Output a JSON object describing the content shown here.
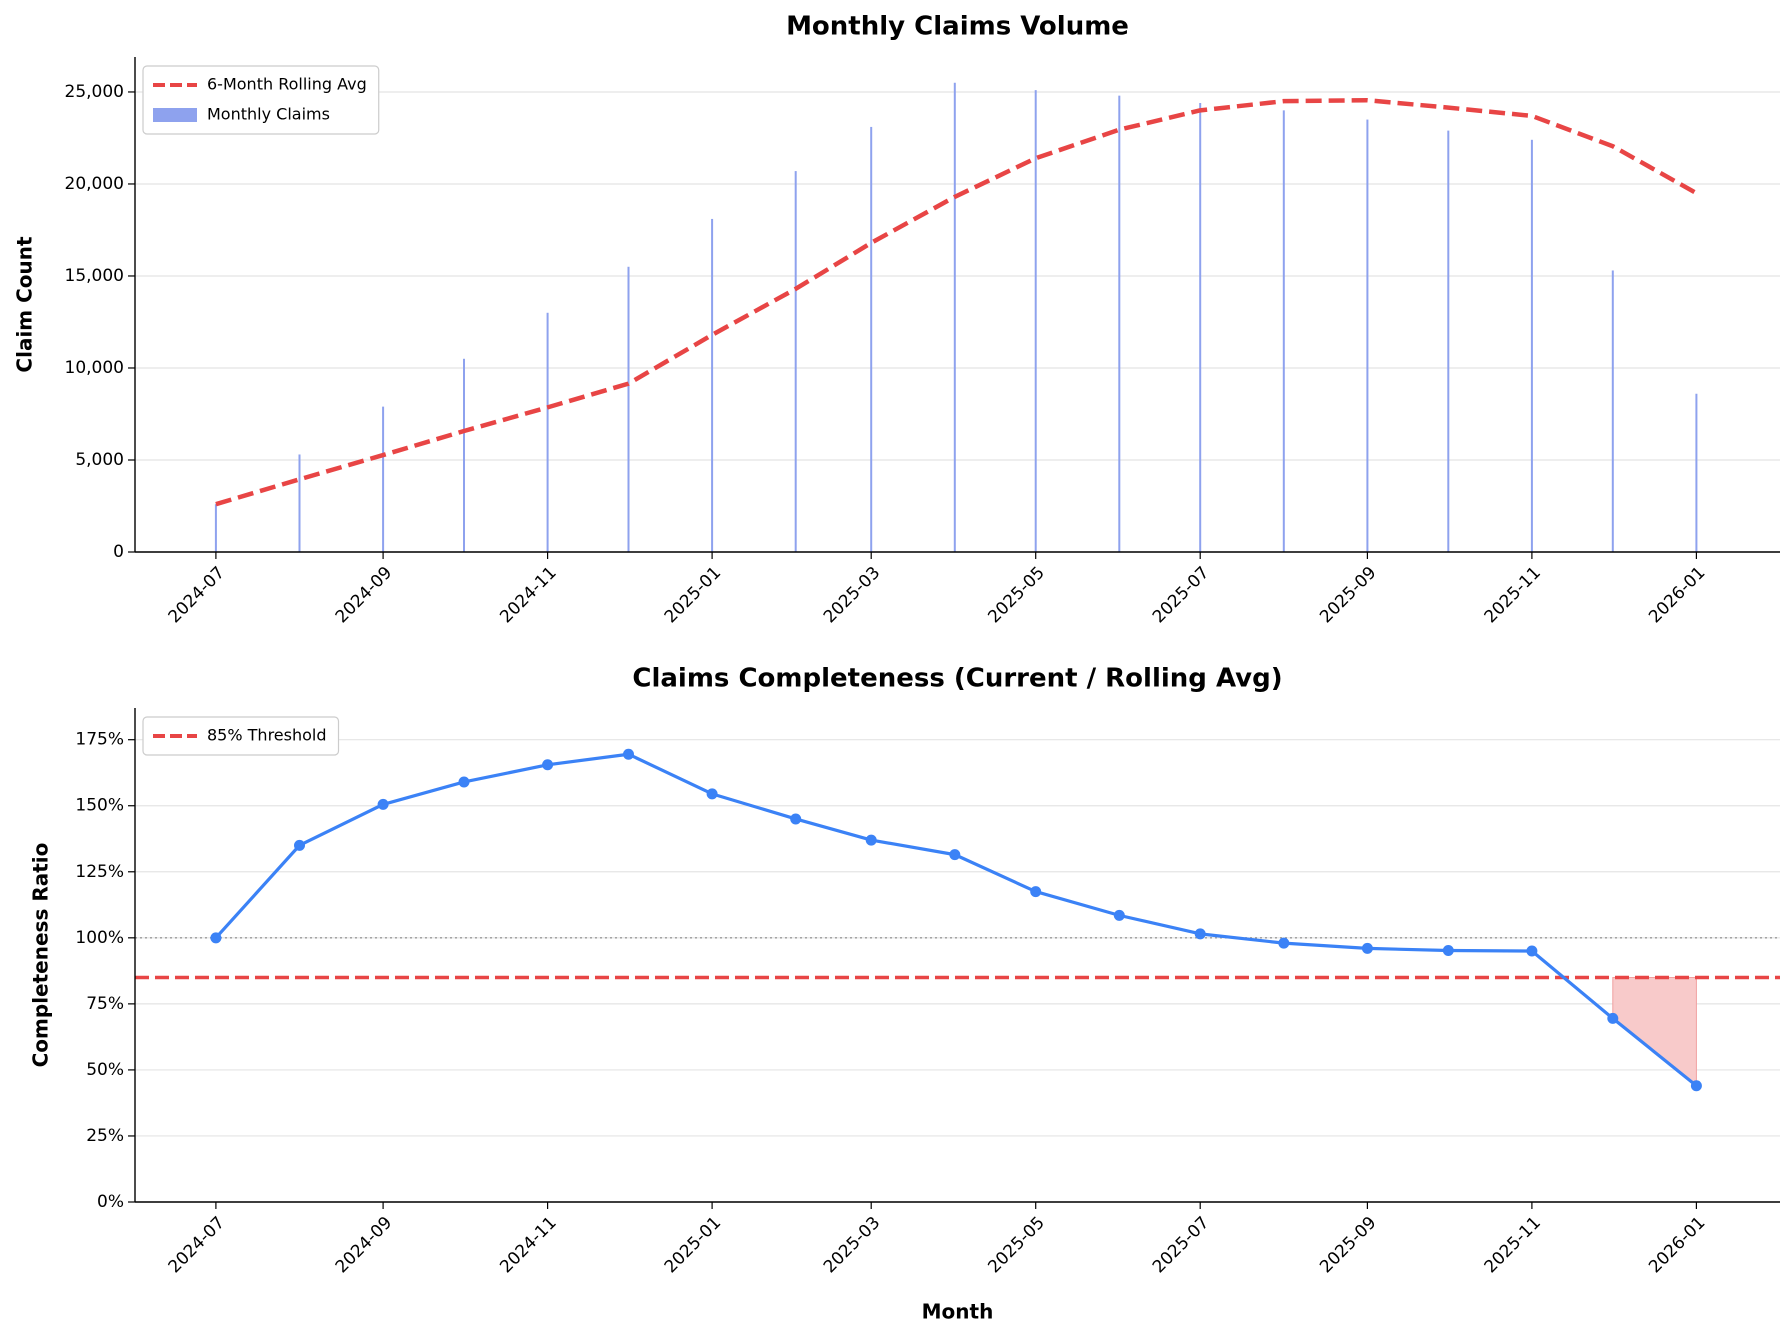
{
  "chart_data": [
    {
      "type": "bar",
      "title": "Monthly Claims Volume",
      "ylabel": "Claim Count",
      "x": [
        "2024-07",
        "2024-08",
        "2024-09",
        "2024-10",
        "2024-11",
        "2024-12",
        "2025-01",
        "2025-02",
        "2025-03",
        "2025-04",
        "2025-05",
        "2025-06",
        "2025-07",
        "2025-08",
        "2025-09",
        "2025-10",
        "2025-11",
        "2025-12",
        "2026-01"
      ],
      "series": [
        {
          "name": "6-Month Rolling Avg",
          "type": "line",
          "color": "#e84545",
          "dashed": true,
          "values": [
            2600,
            3950,
            5267,
            6575,
            7860,
            9150,
            11800,
            14300,
            16800,
            19300,
            21400,
            22950,
            24000,
            24500,
            24550,
            24150,
            23700,
            22050,
            19500
          ]
        },
        {
          "name": "Monthly Claims",
          "type": "bar",
          "color": "#8ea2ee",
          "values": [
            2600,
            5300,
            7900,
            10500,
            13000,
            15500,
            18100,
            20700,
            23100,
            25500,
            25100,
            24800,
            24400,
            24000,
            23500,
            22900,
            22400,
            15300,
            8600
          ]
        }
      ],
      "xlim": [
        "2024-06",
        "2026-02"
      ],
      "xticks": [
        "2024-07",
        "2024-09",
        "2024-11",
        "2025-01",
        "2025-03",
        "2025-05",
        "2025-07",
        "2025-09",
        "2025-11",
        "2026-01"
      ],
      "ylim": [
        0,
        26900
      ],
      "yticks": [
        0,
        {
          "value": 5000,
          "label": "5,000"
        },
        {
          "value": 10000,
          "label": "10,000"
        },
        {
          "value": 15000,
          "label": "15,000"
        },
        {
          "value": 20000,
          "label": "20,000"
        },
        {
          "value": 25000,
          "label": "25,000"
        }
      ],
      "grid": true,
      "legend": "upper left"
    },
    {
      "type": "line",
      "title": "Claims Completeness (Current / Rolling Avg)",
      "xlabel": "Month",
      "ylabel": "Completeness Ratio",
      "x": [
        "2024-07",
        "2024-08",
        "2024-09",
        "2024-10",
        "2024-11",
        "2024-12",
        "2025-01",
        "2025-02",
        "2025-03",
        "2025-04",
        "2025-05",
        "2025-06",
        "2025-07",
        "2025-08",
        "2025-09",
        "2025-10",
        "2025-11",
        "2025-12",
        "2026-01"
      ],
      "series": [
        {
          "type": "line",
          "color": "#3b82f6",
          "markers": true,
          "values": [
            100,
            135,
            150.5,
            159,
            165.5,
            169.5,
            154.5,
            145,
            137,
            131.5,
            117.5,
            108.5,
            101.5,
            98,
            96,
            95.2,
            95,
            69.5,
            44
          ]
        }
      ],
      "threshold": {
        "name": "85% Threshold",
        "value": 85,
        "color": "#e84545",
        "fill": "#f8caca"
      },
      "reference_line": 100,
      "xlim": [
        "2024-06",
        "2026-02"
      ],
      "xticks": [
        "2024-07",
        "2024-09",
        "2024-11",
        "2025-01",
        "2025-03",
        "2025-05",
        "2025-07",
        "2025-09",
        "2025-11",
        "2026-01"
      ],
      "ylim": [
        0,
        187
      ],
      "yticks": [
        {
          "value": 0,
          "label": "0%"
        },
        {
          "value": 25,
          "label": "25%"
        },
        {
          "value": 50,
          "label": "50%"
        },
        {
          "value": 75,
          "label": "75%"
        },
        {
          "value": 100,
          "label": "100%"
        },
        {
          "value": 125,
          "label": "125%"
        },
        {
          "value": 150,
          "label": "150%"
        },
        {
          "value": 175,
          "label": "175%"
        }
      ],
      "grid": true,
      "legend": "upper left"
    }
  ]
}
